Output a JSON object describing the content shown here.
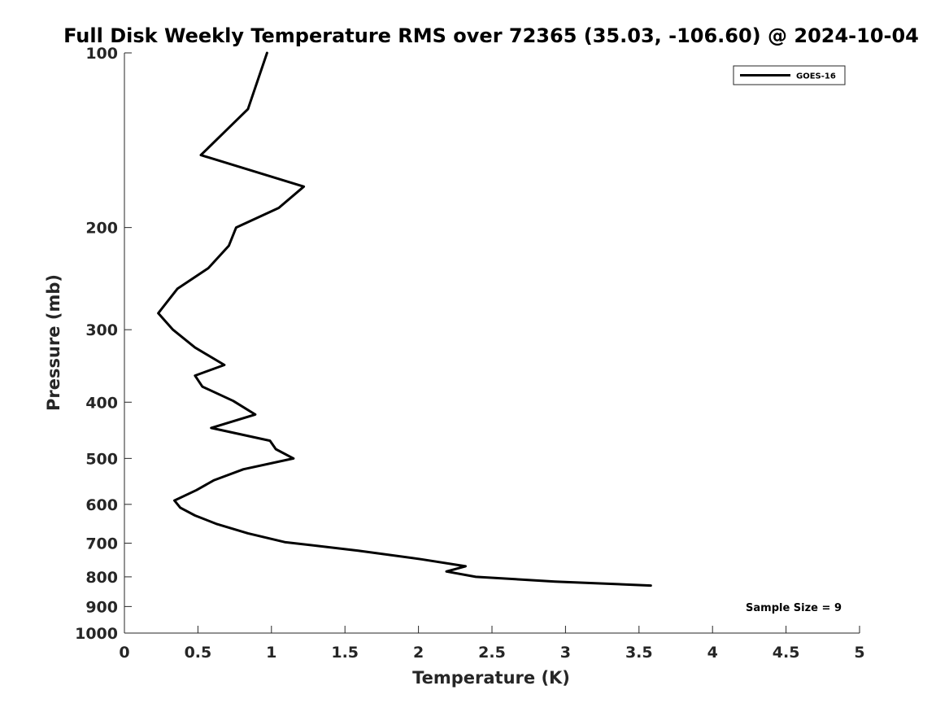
{
  "chart_data": {
    "type": "line",
    "title": "Full Disk Weekly Temperature RMS over 72365 (35.03, -106.60) @ 2024-10-04",
    "xlabel": "Temperature (K)",
    "ylabel": "Pressure (mb)",
    "xlim": [
      0,
      5
    ],
    "ylim": [
      100,
      1000
    ],
    "y_scale": "log",
    "y_reversed": true,
    "xticks": [
      0,
      0.5,
      1,
      1.5,
      2,
      2.5,
      3,
      3.5,
      4,
      4.5,
      5
    ],
    "xtick_labels": [
      "0",
      "0.5",
      "1",
      "1.5",
      "2",
      "2.5",
      "3",
      "3.5",
      "4",
      "4.5",
      "5"
    ],
    "yticks": [
      100,
      200,
      300,
      400,
      500,
      600,
      700,
      800,
      900,
      1000
    ],
    "ytick_labels": [
      "100",
      "200",
      "300",
      "400",
      "500",
      "600",
      "700",
      "800",
      "900",
      "1000"
    ],
    "grid": false,
    "legend_position": "top-right",
    "series": [
      {
        "name": "GOES-16",
        "color": "#000000",
        "points": [
          {
            "x": 0.97,
            "y": 100
          },
          {
            "x": 0.84,
            "y": 125
          },
          {
            "x": 0.52,
            "y": 150
          },
          {
            "x": 1.22,
            "y": 170
          },
          {
            "x": 1.05,
            "y": 185
          },
          {
            "x": 0.76,
            "y": 200
          },
          {
            "x": 0.71,
            "y": 215
          },
          {
            "x": 0.57,
            "y": 235
          },
          {
            "x": 0.36,
            "y": 255
          },
          {
            "x": 0.23,
            "y": 281
          },
          {
            "x": 0.33,
            "y": 300
          },
          {
            "x": 0.48,
            "y": 322
          },
          {
            "x": 0.68,
            "y": 345
          },
          {
            "x": 0.48,
            "y": 360
          },
          {
            "x": 0.53,
            "y": 376
          },
          {
            "x": 0.74,
            "y": 398
          },
          {
            "x": 0.89,
            "y": 420
          },
          {
            "x": 0.59,
            "y": 443
          },
          {
            "x": 0.99,
            "y": 466
          },
          {
            "x": 1.03,
            "y": 482
          },
          {
            "x": 1.15,
            "y": 500
          },
          {
            "x": 0.81,
            "y": 522
          },
          {
            "x": 0.61,
            "y": 545
          },
          {
            "x": 0.49,
            "y": 567
          },
          {
            "x": 0.34,
            "y": 591
          },
          {
            "x": 0.38,
            "y": 608
          },
          {
            "x": 0.48,
            "y": 627
          },
          {
            "x": 0.63,
            "y": 649
          },
          {
            "x": 0.84,
            "y": 673
          },
          {
            "x": 1.09,
            "y": 697
          },
          {
            "x": 1.59,
            "y": 721
          },
          {
            "x": 2.02,
            "y": 746
          },
          {
            "x": 2.32,
            "y": 767
          },
          {
            "x": 2.19,
            "y": 783
          },
          {
            "x": 2.39,
            "y": 800
          },
          {
            "x": 2.93,
            "y": 815
          },
          {
            "x": 3.58,
            "y": 828
          }
        ]
      }
    ],
    "annotations": [
      "Sample Size = 9"
    ]
  }
}
